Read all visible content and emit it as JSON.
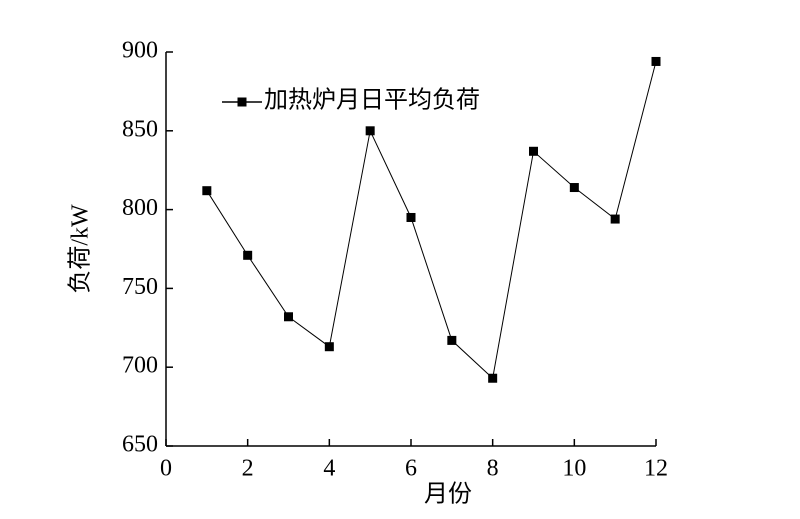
{
  "chart_data": {
    "type": "line",
    "x_label": "月份",
    "y_label": "负荷/kW",
    "x": [
      1,
      2,
      3,
      4,
      5,
      6,
      7,
      8,
      9,
      10,
      11,
      12
    ],
    "series": [
      {
        "name": "加热炉月日平均负荷",
        "color": "#000000",
        "values": [
          812,
          771,
          732,
          713,
          850,
          795,
          717,
          693,
          837,
          814,
          794,
          894
        ]
      }
    ],
    "xlim": [
      0,
      12
    ],
    "xticks": [
      0,
      2,
      4,
      6,
      8,
      10,
      12
    ],
    "ylim": [
      650,
      900
    ],
    "yticks": [
      650,
      700,
      750,
      800,
      850,
      900
    ],
    "legend": "upper left",
    "grid": false
  }
}
